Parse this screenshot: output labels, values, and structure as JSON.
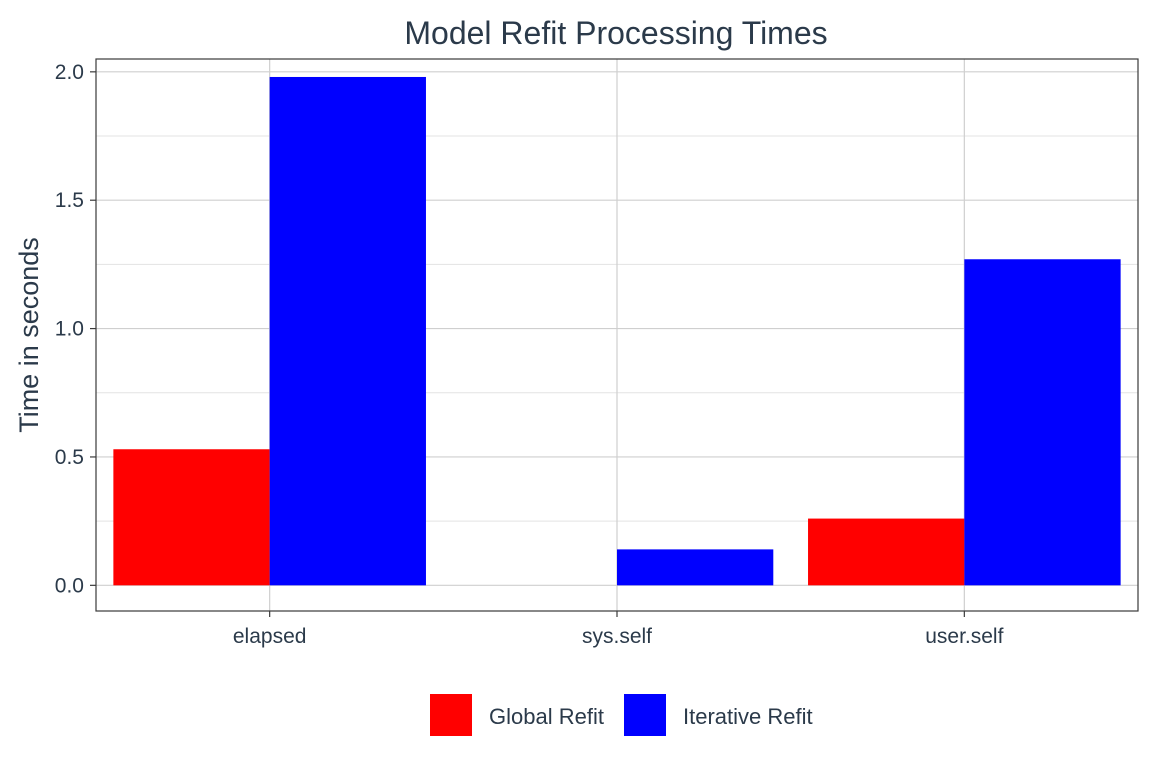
{
  "chart_data": {
    "type": "bar",
    "title": "Model Refit Processing Times",
    "xlabel": "",
    "ylabel": "Time in seconds",
    "categories": [
      "elapsed",
      "sys.self",
      "user.self"
    ],
    "series": [
      {
        "name": "Global Refit",
        "color": "#ff0000",
        "values": [
          0.53,
          0.0,
          0.26
        ]
      },
      {
        "name": "Iterative Refit",
        "color": "#0000ff",
        "values": [
          1.98,
          0.14,
          1.27
        ]
      }
    ],
    "ylim": [
      -0.1,
      2.05
    ],
    "yticks": [
      0.0,
      0.5,
      1.0,
      1.5,
      2.0
    ],
    "ytick_labels": [
      "0.0",
      "0.5",
      "1.0",
      "1.5",
      "2.0"
    ],
    "grid": true,
    "legend_position": "bottom"
  }
}
